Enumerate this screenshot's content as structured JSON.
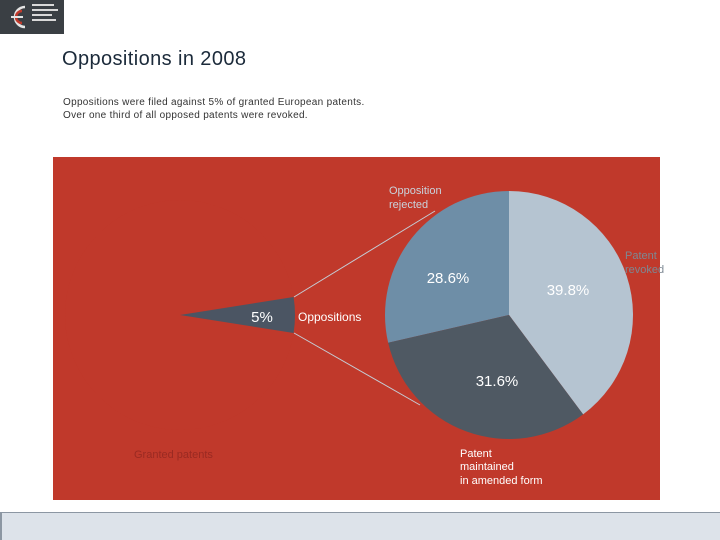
{
  "slide": {
    "title": "Oppositions in 2008",
    "subtitle_lines": [
      "Oppositions were filed against 5% of granted European patents.",
      "Over one third of all opposed patents were revoked."
    ]
  },
  "colors": {
    "background_panel": "#c0392b",
    "granted": "#c0392b",
    "oppositions_wedge": "#4b5563",
    "rejected": "#6e8ea7",
    "revoked": "#b5c4d1",
    "maintained": "#4f5963",
    "text_dark": "#1b2a3a",
    "label_muted": "#9a2a22",
    "label_light": "#c9d3dc"
  },
  "icons": {
    "logo": "epo-logo-icon"
  },
  "chart_data": [
    {
      "type": "pie",
      "name": "granted-patents-pie",
      "categories": [
        "Granted patents",
        "Oppositions"
      ],
      "values": [
        95,
        5
      ],
      "labels": {
        "granted": "Granted patents",
        "oppositions_pct": "5%",
        "oppositions": "Oppositions"
      }
    },
    {
      "type": "pie",
      "name": "oppositions-breakdown-pie",
      "categories": [
        "Opposition rejected",
        "Patent revoked",
        "Patent maintained in amended form"
      ],
      "values": [
        28.6,
        39.8,
        31.6
      ],
      "data_labels": [
        "28.6%",
        "39.8%",
        "31.6%"
      ],
      "legend_labels": {
        "rejected": "Opposition rejected",
        "revoked": "Patent revoked",
        "maintained": "Patent maintained in amended form"
      }
    }
  ]
}
